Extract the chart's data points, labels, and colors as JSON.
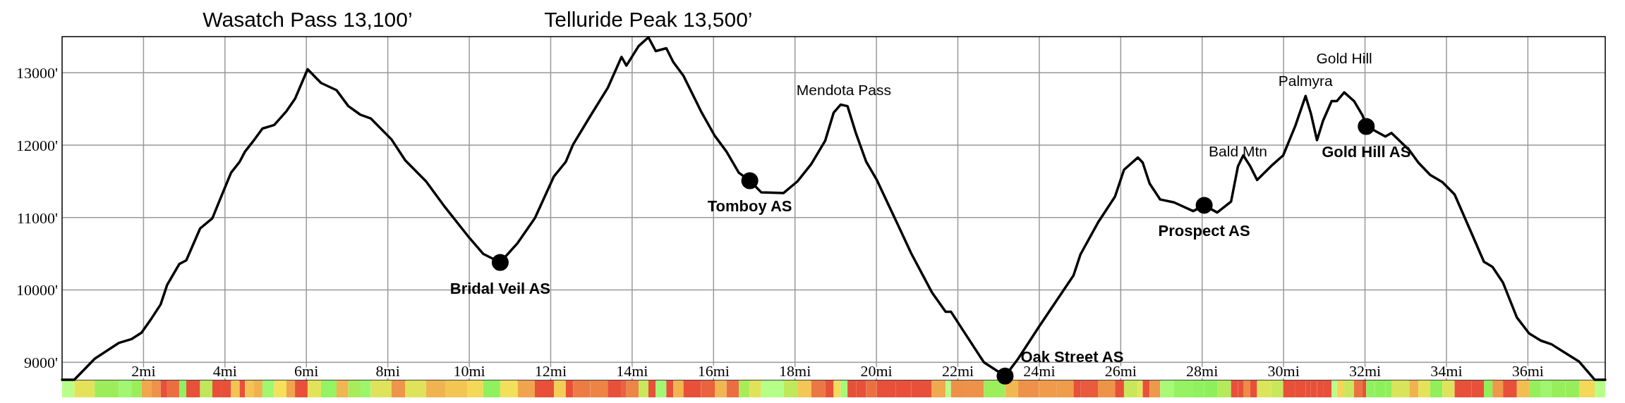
{
  "chart_data": {
    "type": "line",
    "series": [
      {
        "color": "#000000",
        "x": [
          0,
          0.3,
          0.8,
          1.4,
          1.7,
          1.95,
          2.2,
          2.42,
          2.58,
          2.88,
          3.05,
          3.39,
          3.69,
          3.9,
          4.15,
          4.36,
          4.49,
          4.7,
          4.92,
          5.21,
          5.51,
          5.72,
          6.03,
          6.36,
          6.74,
          7.03,
          7.33,
          7.58,
          8.09,
          8.43,
          8.94,
          9.41,
          9.96,
          10.34,
          10.76,
          11.19,
          11.61,
          12.08,
          12.37,
          12.55,
          12.97,
          13.4,
          13.74,
          13.86,
          14.16,
          14.4,
          14.58,
          14.84,
          15.01,
          15.26,
          15.69,
          16.03,
          16.32,
          16.62,
          16.89,
          17.17,
          17.72,
          18.06,
          18.4,
          18.74,
          18.95,
          19.12,
          19.29,
          19.5,
          19.75,
          20.01,
          20.47,
          20.86,
          21.36,
          21.7,
          21.83,
          22.13,
          22.64,
          23.16,
          23.48,
          23.99,
          24.42,
          24.84,
          25.01,
          25.44,
          25.86,
          26.08,
          26.42,
          26.54,
          26.71,
          26.97,
          27.31,
          27.78,
          28.05,
          28.37,
          28.71,
          28.88,
          29.01,
          29.18,
          29.35,
          29.69,
          29.99,
          30.29,
          30.54,
          30.67,
          30.82,
          30.97,
          31.18,
          31.31,
          31.49,
          31.73,
          31.94,
          32.03,
          32.24,
          32.5,
          32.65,
          33.09,
          33.31,
          33.6,
          33.9,
          34.2,
          34.62,
          34.92,
          35.13,
          35.39,
          35.73,
          36.03,
          36.32,
          36.58,
          36.92,
          37.26,
          37.64,
          37.9
        ],
        "values": [
          8760,
          8760,
          9050,
          9270,
          9320,
          9410,
          9610,
          9800,
          10070,
          10360,
          10410,
          10850,
          10990,
          11280,
          11620,
          11770,
          11910,
          12060,
          12230,
          12280,
          12470,
          12640,
          13050,
          12860,
          12760,
          12540,
          12420,
          12370,
          12080,
          11790,
          11500,
          11140,
          10750,
          10500,
          10380,
          10650,
          10990,
          11570,
          11770,
          12010,
          12400,
          12790,
          13220,
          13100,
          13370,
          13490,
          13300,
          13340,
          13150,
          12960,
          12470,
          12130,
          11910,
          11620,
          11510,
          11350,
          11340,
          11500,
          11740,
          12060,
          12450,
          12560,
          12540,
          12160,
          11770,
          11520,
          10970,
          10500,
          9970,
          9700,
          9700,
          9440,
          9000,
          8810,
          9050,
          9490,
          9850,
          10200,
          10490,
          10930,
          11290,
          11660,
          11830,
          11760,
          11470,
          11250,
          11210,
          11090,
          11170,
          11070,
          11220,
          11710,
          11860,
          11710,
          11520,
          11710,
          11860,
          12270,
          12680,
          12440,
          12070,
          12340,
          12610,
          12610,
          12730,
          12610,
          12410,
          12260,
          12200,
          12120,
          12170,
          11930,
          11760,
          11590,
          11490,
          11320,
          10780,
          10390,
          10320,
          10100,
          9620,
          9400,
          9300,
          9250,
          9130,
          9010,
          8760,
          8760
        ]
      },
      {
        "type": "scatter",
        "color": "#000000",
        "marker": "circle",
        "x": [
          10.76,
          16.89,
          23.16,
          28.05,
          32.03
        ],
        "values": [
          10380,
          11510,
          8810,
          11170,
          12260
        ]
      }
    ],
    "xlim": [
      0,
      37.9
    ],
    "ylim": [
      8750,
      13500
    ],
    "xticks": [
      {
        "value": 2,
        "label": "2mi"
      },
      {
        "value": 4,
        "label": "4mi"
      },
      {
        "value": 6,
        "label": "6mi"
      },
      {
        "value": 8,
        "label": "8mi"
      },
      {
        "value": 10,
        "label": "10mi"
      },
      {
        "value": 12,
        "label": "12mi"
      },
      {
        "value": 14,
        "label": "14mi"
      },
      {
        "value": 16,
        "label": "16mi"
      },
      {
        "value": 18,
        "label": "18mi"
      },
      {
        "value": 20,
        "label": "20mi"
      },
      {
        "value": 22,
        "label": "22mi"
      },
      {
        "value": 24,
        "label": "24mi"
      },
      {
        "value": 26,
        "label": "26mi"
      },
      {
        "value": 28,
        "label": "28mi"
      },
      {
        "value": 30,
        "label": "30mi"
      },
      {
        "value": 32,
        "label": "32mi"
      },
      {
        "value": 34,
        "label": "34mi"
      },
      {
        "value": 36,
        "label": "36mi"
      }
    ],
    "yticks": [
      {
        "value": 9000,
        "label": "9000'"
      },
      {
        "value": 10000,
        "label": "10000'"
      },
      {
        "value": 11000,
        "label": "11000'"
      },
      {
        "value": 12000,
        "label": "12000'"
      },
      {
        "value": 13000,
        "label": "13000'"
      }
    ],
    "grid": true,
    "annotations": [
      {
        "text": "Wasatch Pass 13,100’",
        "x": 6.03,
        "y": 13050
      },
      {
        "text": "Telluride Peak 13,500’",
        "x": 14.4,
        "y": 13490
      },
      {
        "text": "Mendota Pass",
        "x": 19.2,
        "y": 12560
      },
      {
        "text": "Bald Mtn",
        "x": 28.88,
        "y": 11710
      },
      {
        "text": "Palmyra",
        "x": 30.54,
        "y": 12680
      },
      {
        "text": "Gold Hill",
        "x": 31.49,
        "y": 12730
      },
      {
        "text": "Bridal Veil AS",
        "x": 10.76,
        "y": 10380
      },
      {
        "text": "Tomboy AS",
        "x": 16.89,
        "y": 11510
      },
      {
        "text": "Oak Street AS",
        "x": 23.16,
        "y": 8810
      },
      {
        "text": "Prospect AS",
        "x": 28.05,
        "y": 11170
      },
      {
        "text": "Gold Hill AS",
        "x": 32.03,
        "y": 12260
      }
    ]
  }
}
